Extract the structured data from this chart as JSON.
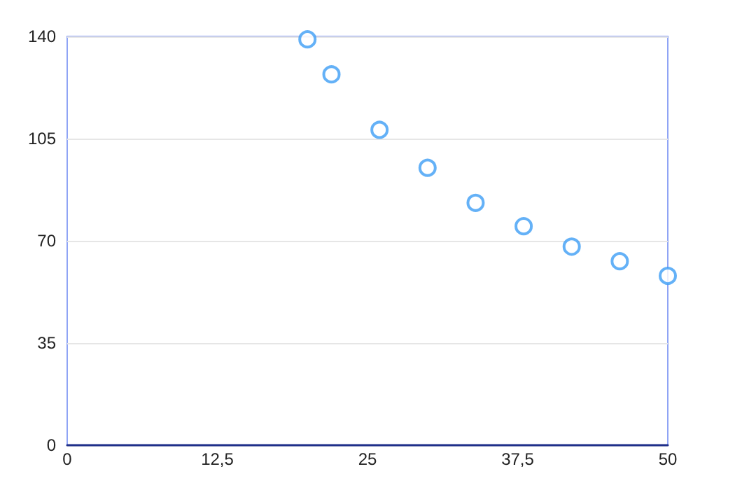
{
  "chart_data": {
    "type": "scatter",
    "x": [
      20,
      22,
      26,
      30,
      34,
      38,
      42,
      46,
      50
    ],
    "series": [
      {
        "color": "#3d9df5",
        "values": [
          139,
          127,
          108,
          95,
          83,
          75,
          68,
          63,
          58
        ]
      }
    ],
    "xlim": [
      0,
      50
    ],
    "xticks": [
      0,
      {
        "value": 12.5,
        "label": "12,5"
      },
      25,
      {
        "value": 37.5,
        "label": "37,5"
      },
      50
    ],
    "ylim": [
      0,
      140
    ],
    "yticks": [
      0,
      35,
      70,
      105,
      140
    ],
    "grid": "y",
    "marker": "circle"
  }
}
